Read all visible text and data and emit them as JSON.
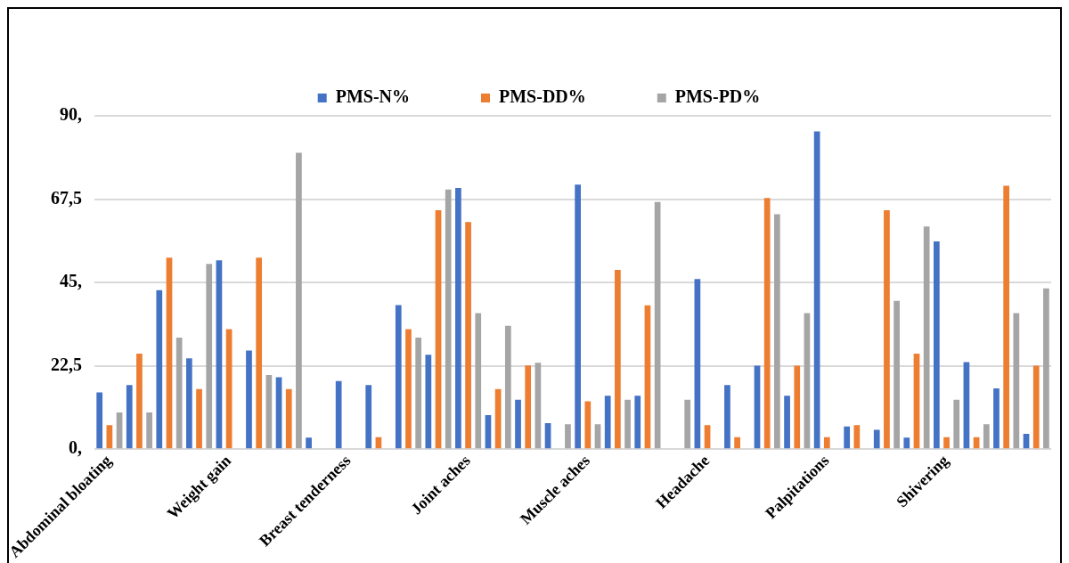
{
  "chart_data": {
    "type": "bar",
    "categories": [
      "Abdominal bloating",
      null,
      null,
      null,
      "Weight gain",
      null,
      null,
      null,
      "Breast tenderness",
      null,
      null,
      null,
      "Joint aches",
      null,
      null,
      null,
      "Muscle aches",
      null,
      null,
      null,
      "Headache",
      null,
      null,
      null,
      "Palpitations",
      null,
      null,
      null,
      "Shivering",
      null,
      null,
      null
    ],
    "series": [
      {
        "name": "PMS-N%",
        "color": "#4472c4",
        "values": [
          15.3,
          17.3,
          42.9,
          24.5,
          51.0,
          26.6,
          19.4,
          3.1,
          18.4,
          17.3,
          38.9,
          25.5,
          70.5,
          9.2,
          13.3,
          7.0,
          71.4,
          14.4,
          14.4,
          0,
          45.9,
          17.3,
          22.5,
          14.4,
          85.8,
          6.1,
          5.2,
          3.1,
          56.1,
          23.5,
          16.4,
          4.1
        ]
      },
      {
        "name": "PMS-DD%",
        "color": "#ed7d31",
        "values": [
          6.5,
          25.8,
          51.7,
          16.2,
          32.4,
          51.7,
          16.2,
          0,
          0,
          3.2,
          32.4,
          64.5,
          61.3,
          16.2,
          22.6,
          0,
          12.9,
          48.4,
          38.8,
          0,
          6.5,
          3.2,
          67.8,
          22.5,
          3.2,
          6.5,
          64.5,
          25.8,
          3.2,
          3.2,
          71.1,
          22.5
        ]
      },
      {
        "name": "PMS-PD%",
        "color": "#a5a5a5",
        "values": [
          9.9,
          9.9,
          30.1,
          50.0,
          0,
          20.0,
          80.0,
          0,
          0,
          0,
          30.1,
          70.1,
          36.7,
          33.3,
          23.3,
          6.7,
          6.7,
          13.3,
          66.7,
          13.3,
          0,
          0,
          63.4,
          36.7,
          0,
          0,
          40.0,
          60.1,
          13.3,
          6.7,
          36.7,
          43.4
        ]
      }
    ],
    "ylim": [
      0,
      90
    ],
    "yticks": [
      {
        "value": 0,
        "label": "0,"
      },
      {
        "value": 22.5,
        "label": "22,5"
      },
      {
        "value": 45,
        "label": "45,"
      },
      {
        "value": 67.5,
        "label": "67,5"
      },
      {
        "value": 90,
        "label": "90,"
      }
    ],
    "grid": "y",
    "legend": "top"
  }
}
